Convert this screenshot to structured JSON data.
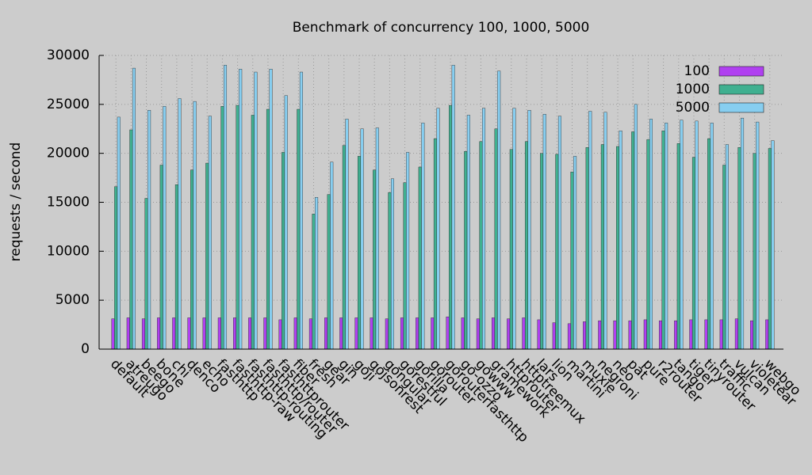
{
  "chart_data": {
    "type": "bar",
    "title": "Benchmark of concurrency 100, 1000, 5000",
    "y_label": "requests / second",
    "categories": [
      "default",
      "atreugo",
      "beego",
      "bone",
      "chi",
      "denco",
      "echo",
      "fasthttp",
      "fasthttp-raw",
      "fasthttp-routing",
      "fasthttp/router",
      "fasthttprouter",
      "fiber",
      "fresh",
      "gear",
      "gin",
      "goji",
      "gojsonrest",
      "gongular",
      "gorestful",
      "gorilla",
      "gorouter",
      "gorouterfasthttp",
      "go-ozzo",
      "gowww",
      "gramework",
      "httprouter",
      "httptreemux",
      "lars",
      "lion",
      "martini",
      "muxie",
      "negroni",
      "neo",
      "pat",
      "pure",
      "r2router",
      "tango",
      "tiger",
      "tinyrouter",
      "traffic",
      "vulcan",
      "violetear",
      "webgo"
    ],
    "series": [
      {
        "name": "100",
        "color": "#b040f0",
        "values": [
          3100,
          3200,
          3100,
          3200,
          3200,
          3200,
          3200,
          3200,
          3200,
          3200,
          3200,
          3000,
          3200,
          3100,
          3200,
          3200,
          3200,
          3200,
          3100,
          3200,
          3200,
          3200,
          3300,
          3200,
          3100,
          3200,
          3100,
          3200,
          3000,
          2700,
          2600,
          2800,
          2900,
          2900,
          2900,
          3000,
          2900,
          2900,
          3000,
          3000,
          3000,
          3100,
          2900,
          3000
        ]
      },
      {
        "name": "1000",
        "color": "#40b090",
        "values": [
          16600,
          22400,
          15400,
          18800,
          16800,
          18300,
          19000,
          24800,
          24900,
          23900,
          24500,
          20100,
          24500,
          13800,
          15800,
          20800,
          19700,
          18300,
          16000,
          17000,
          18600,
          21500,
          24900,
          20200,
          21200,
          22500,
          20400,
          21200,
          20000,
          19900,
          18100,
          20600,
          20900,
          20700,
          22200,
          21400,
          22300,
          21000,
          19600,
          21500,
          18800,
          20600,
          20000,
          20500
        ]
      },
      {
        "name": "5000",
        "color": "#87cef0",
        "values": [
          23700,
          28700,
          24400,
          24800,
          25600,
          25300,
          23800,
          29000,
          28600,
          28300,
          28600,
          25900,
          28300,
          15500,
          19100,
          23500,
          22500,
          22600,
          17400,
          20100,
          23100,
          24600,
          29000,
          23900,
          24600,
          28400,
          24600,
          24400,
          24000,
          23800,
          19700,
          24300,
          24200,
          22300,
          25000,
          23500,
          23100,
          23400,
          23300,
          23100,
          20900,
          23600,
          23200,
          21300
        ]
      }
    ],
    "ylim": [
      0,
      30000
    ],
    "yticks": [
      0,
      5000,
      10000,
      15000,
      20000,
      25000,
      30000
    ],
    "grid": true,
    "legend": "top-right"
  }
}
